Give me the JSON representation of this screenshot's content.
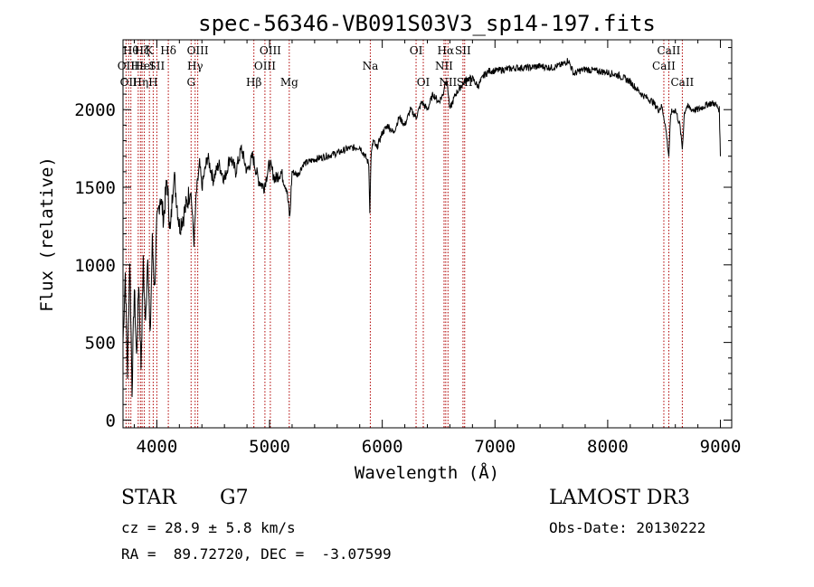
{
  "chart_data": {
    "type": "line",
    "title": "spec-56346-VB091S03V3_sp14-197.fits",
    "xlabel": "Wavelength (Å)",
    "ylabel": "Flux (relative)",
    "xlim": [
      3700,
      9100
    ],
    "ylim": [
      -50,
      2450
    ],
    "xticks": [
      4000,
      5000,
      6000,
      7000,
      8000,
      9000
    ],
    "yticks": [
      0,
      500,
      1000,
      1500,
      2000
    ],
    "grid": false,
    "series": [
      {
        "name": "spectrum",
        "x": [
          3700,
          3720,
          3740,
          3760,
          3780,
          3800,
          3820,
          3840,
          3860,
          3880,
          3900,
          3920,
          3940,
          3960,
          3980,
          4000,
          4030,
          4060,
          4090,
          4120,
          4150,
          4200,
          4250,
          4300,
          4330,
          4350,
          4380,
          4400,
          4450,
          4500,
          4550,
          4600,
          4650,
          4700,
          4750,
          4800,
          4850,
          4900,
          4950,
          5000,
          5050,
          5100,
          5150,
          5180,
          5200,
          5250,
          5300,
          5400,
          5500,
          5600,
          5700,
          5800,
          5850,
          5880,
          5890,
          5900,
          5920,
          5950,
          6000,
          6050,
          6100,
          6150,
          6200,
          6250,
          6300,
          6350,
          6400,
          6450,
          6500,
          6540,
          6563,
          6580,
          6600,
          6650,
          6700,
          6750,
          6800,
          6850,
          6900,
          6950,
          7000,
          7100,
          7200,
          7300,
          7400,
          7500,
          7600,
          7650,
          7700,
          7750,
          7800,
          7900,
          8000,
          8100,
          8200,
          8300,
          8400,
          8450,
          8480,
          8500,
          8520,
          8542,
          8560,
          8600,
          8640,
          8662,
          8680,
          8700,
          8750,
          8800,
          8850,
          8900,
          8950,
          8990,
          9000
        ],
        "y": [
          500,
          950,
          300,
          1050,
          200,
          850,
          400,
          900,
          350,
          1000,
          600,
          1100,
          500,
          1150,
          850,
          1250,
          1450,
          1300,
          1550,
          1200,
          1600,
          1250,
          1350,
          1500,
          1150,
          1450,
          1650,
          1500,
          1700,
          1550,
          1650,
          1550,
          1700,
          1600,
          1750,
          1600,
          1700,
          1550,
          1500,
          1650,
          1550,
          1600,
          1500,
          1300,
          1600,
          1580,
          1650,
          1680,
          1700,
          1720,
          1750,
          1760,
          1700,
          1650,
          1350,
          1700,
          1800,
          1750,
          1850,
          1900,
          1850,
          1950,
          1900,
          2000,
          1950,
          2050,
          2000,
          2100,
          2050,
          2100,
          2200,
          2150,
          2000,
          2100,
          2150,
          2200,
          2200,
          2150,
          2220,
          2250,
          2250,
          2260,
          2270,
          2270,
          2280,
          2270,
          2290,
          2320,
          2230,
          2250,
          2260,
          2250,
          2240,
          2220,
          2180,
          2100,
          2050,
          2000,
          2020,
          1950,
          1850,
          1700,
          1980,
          2000,
          1900,
          1750,
          1980,
          2020,
          2000,
          2000,
          2020,
          2040,
          2040,
          2000,
          1700
        ]
      }
    ],
    "lines": [
      {
        "wave": 3727,
        "label": "OII",
        "row": 1
      },
      {
        "wave": 3750,
        "label": "OII",
        "row": 2
      },
      {
        "wave": 3770,
        "label": "Hθ",
        "row": 0
      },
      {
        "wave": 3835,
        "label": "Hε",
        "row": 1
      },
      {
        "wave": 3855,
        "label": "Hη",
        "row": 2
      },
      {
        "wave": 3869,
        "label": "Hζ",
        "row": 0
      },
      {
        "wave": 3889,
        "label": "HeI",
        "row": 1
      },
      {
        "wave": 3934,
        "label": "K",
        "row": 0
      },
      {
        "wave": 3968,
        "label": "H",
        "row": 2
      },
      {
        "wave": 4000,
        "label": "SII",
        "row": 1
      },
      {
        "wave": 4102,
        "label": "Hδ",
        "row": 0
      },
      {
        "wave": 4304,
        "label": "G",
        "row": 2
      },
      {
        "wave": 4340,
        "label": "Hγ",
        "row": 1
      },
      {
        "wave": 4363,
        "label": "OIII",
        "row": 0
      },
      {
        "wave": 4861,
        "label": "Hβ",
        "row": 2
      },
      {
        "wave": 4959,
        "label": "OIII",
        "row": 1
      },
      {
        "wave": 5007,
        "label": "OIII",
        "row": 0
      },
      {
        "wave": 5175,
        "label": "Mg",
        "row": 2
      },
      {
        "wave": 5894,
        "label": "Na",
        "row": 1
      },
      {
        "wave": 6300,
        "label": "OI",
        "row": 0
      },
      {
        "wave": 6364,
        "label": "OI",
        "row": 2
      },
      {
        "wave": 6548,
        "label": "NII",
        "row": 1
      },
      {
        "wave": 6563,
        "label": "Hα",
        "row": 0
      },
      {
        "wave": 6583,
        "label": "NII",
        "row": 2
      },
      {
        "wave": 6716,
        "label": "SII",
        "row": 0
      },
      {
        "wave": 6731,
        "label": "SII",
        "row": 2
      },
      {
        "wave": 8498,
        "label": "CaII",
        "row": 1
      },
      {
        "wave": 8542,
        "label": "CaII",
        "row": 0
      },
      {
        "wave": 8662,
        "label": "CaII",
        "row": 2
      }
    ]
  },
  "info": {
    "class": "STAR",
    "subclass": "G7",
    "survey": "LAMOST DR3",
    "cz": "cz = 28.9 ± 5.8 km/s",
    "obs_date": "Obs-Date: 20130222",
    "coords": "RA =  89.72720, DEC =  -3.07599"
  }
}
